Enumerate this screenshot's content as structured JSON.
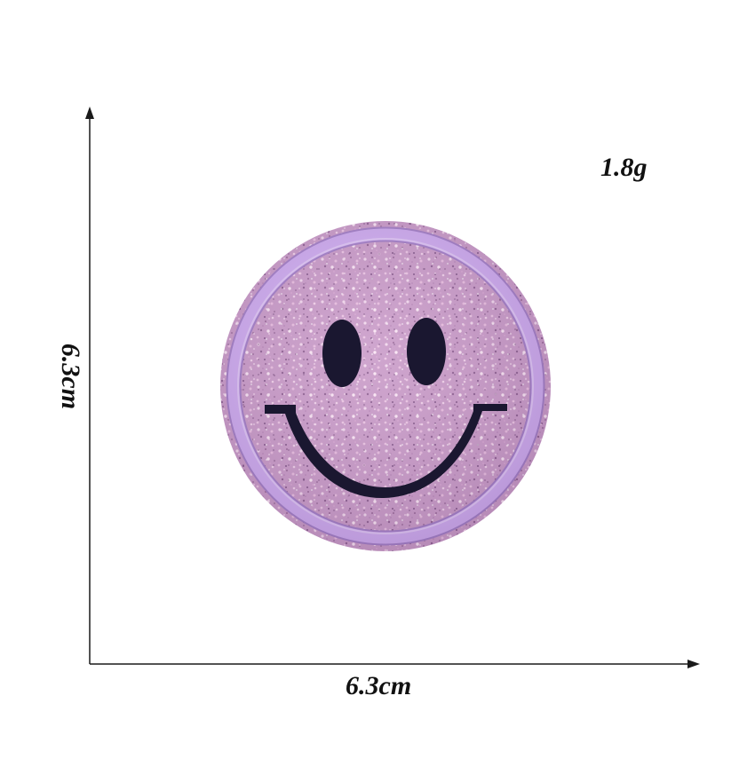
{
  "product": {
    "name_icon": "smiley-face-glitter-patch",
    "weight_label": "1.8g",
    "width_label": "6.3cm",
    "height_label": "6.3cm"
  },
  "colors": {
    "background": "#ffffff",
    "glitter": "#c99ac8",
    "glitter_dark": "#9e6d9e",
    "border_ring": "#c8a4e8",
    "border_ring_edge": "#a07cc6",
    "face_features": "#1a1730",
    "axis": "#1a1a1a"
  }
}
